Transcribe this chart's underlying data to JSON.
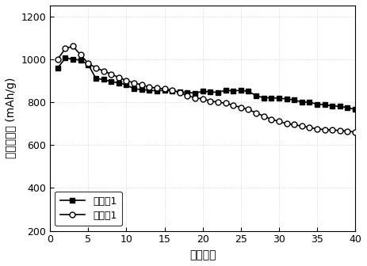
{
  "series1_label": "实施例1",
  "series2_label": "对比例1",
  "series1_x": [
    1,
    2,
    3,
    4,
    5,
    6,
    7,
    8,
    9,
    10,
    11,
    12,
    13,
    14,
    15,
    16,
    17,
    18,
    19,
    20,
    21,
    22,
    23,
    24,
    25,
    26,
    27,
    28,
    29,
    30,
    31,
    32,
    33,
    34,
    35,
    36,
    37,
    38,
    39,
    40
  ],
  "series1_y": [
    960,
    1005,
    1000,
    995,
    975,
    910,
    905,
    895,
    890,
    880,
    862,
    858,
    855,
    852,
    855,
    852,
    848,
    845,
    842,
    850,
    848,
    845,
    855,
    852,
    855,
    850,
    830,
    820,
    820,
    818,
    815,
    810,
    800,
    800,
    790,
    788,
    782,
    780,
    775,
    765
  ],
  "series2_x": [
    1,
    2,
    3,
    4,
    5,
    6,
    7,
    8,
    9,
    10,
    11,
    12,
    13,
    14,
    15,
    16,
    17,
    18,
    19,
    20,
    21,
    22,
    23,
    24,
    25,
    26,
    27,
    28,
    29,
    30,
    31,
    32,
    33,
    34,
    35,
    36,
    37,
    38,
    39,
    40
  ],
  "series2_y": [
    1000,
    1050,
    1060,
    1020,
    980,
    960,
    945,
    930,
    915,
    900,
    890,
    880,
    870,
    865,
    862,
    855,
    845,
    830,
    820,
    815,
    805,
    800,
    795,
    785,
    775,
    765,
    750,
    735,
    720,
    710,
    700,
    695,
    688,
    682,
    675,
    672,
    670,
    668,
    665,
    660
  ],
  "xlabel": "循环次数",
  "ylabel": "放电比容量 (mAh/g)",
  "xlim": [
    0,
    40
  ],
  "ylim": [
    200,
    1250
  ],
  "yticks": [
    200,
    400,
    600,
    800,
    1000,
    1200
  ],
  "xticks": [
    0,
    5,
    10,
    15,
    20,
    25,
    30,
    35,
    40
  ],
  "line_color": "#000000",
  "bg_color": "#ffffff",
  "grid": true,
  "grid_color": "#c0c0c0",
  "grid_style": ":",
  "title_fontsize": 10,
  "label_fontsize": 10,
  "tick_fontsize": 9,
  "legend_fontsize": 9
}
